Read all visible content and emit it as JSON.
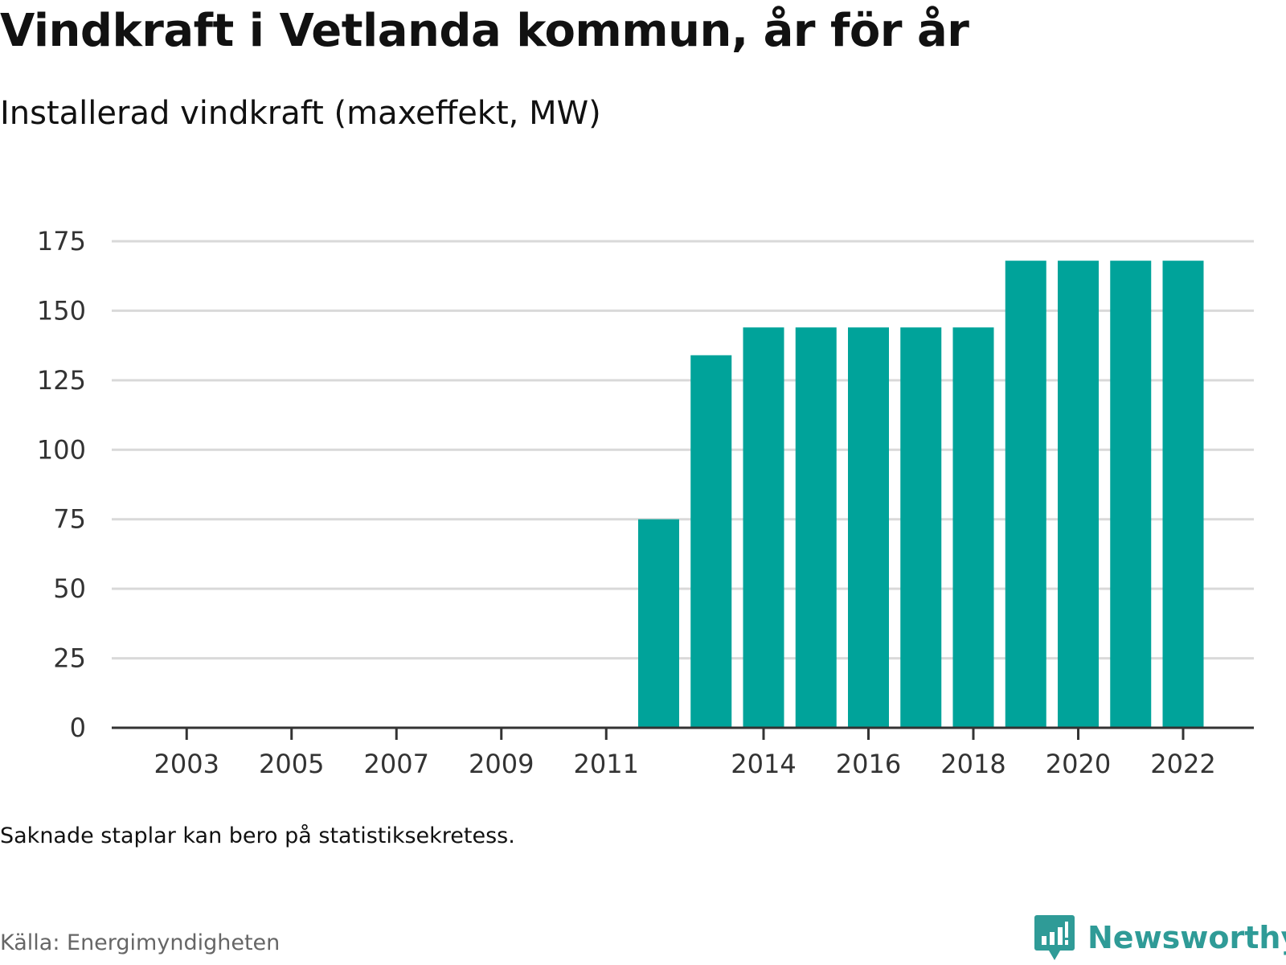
{
  "title": "Vindkraft i Vetlanda kommun, år för år",
  "subtitle": "Installerad vindkraft (maxeffekt, MW)",
  "note": "Saknade staplar kan bero på statistiksekretess.",
  "source": "Källa: Energimyndigheten",
  "logo_text": "Newsworthy",
  "colors": {
    "bar": "#00a39a",
    "grid": "#d9d9d9",
    "axis": "#333333",
    "logo": "#2f9b97"
  },
  "chart_data": {
    "type": "bar",
    "categories": [
      "2002",
      "2003",
      "2004",
      "2005",
      "2006",
      "2007",
      "2008",
      "2009",
      "2010",
      "2011",
      "2012",
      "2013",
      "2014",
      "2015",
      "2016",
      "2017",
      "2018",
      "2019",
      "2020",
      "2021",
      "2022"
    ],
    "values": [
      null,
      null,
      null,
      null,
      null,
      null,
      null,
      null,
      null,
      null,
      75,
      134,
      144,
      144,
      144,
      144,
      144,
      168,
      168,
      168,
      168
    ],
    "x_tick_labels": [
      "2003",
      "2005",
      "2007",
      "2009",
      "2011",
      "2014",
      "2016",
      "2018",
      "2020",
      "2022"
    ],
    "y_ticks": [
      0,
      25,
      50,
      75,
      100,
      125,
      150,
      175
    ],
    "ylim": [
      0,
      175
    ],
    "xlabel": "",
    "ylabel": "",
    "grid": true
  }
}
